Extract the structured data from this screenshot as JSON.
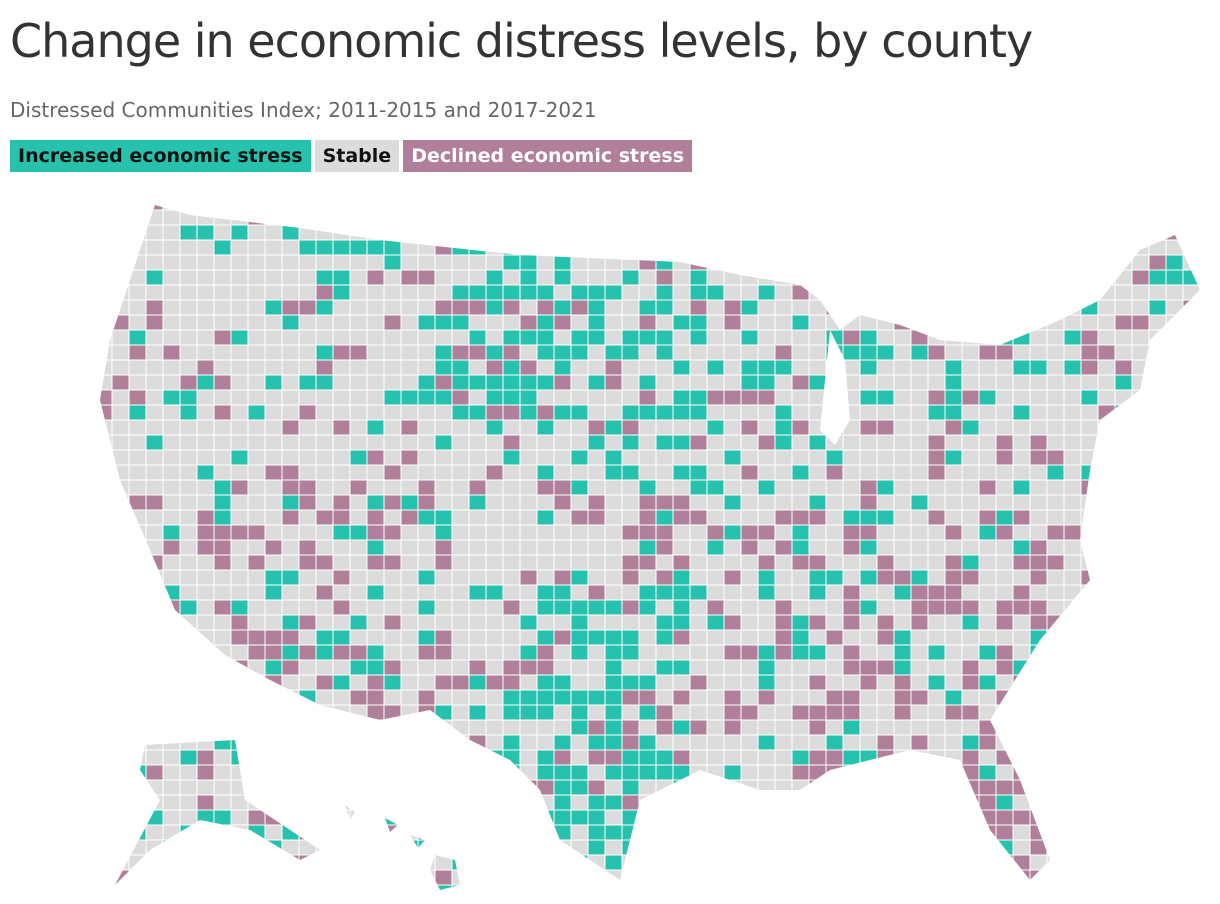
{
  "header": {
    "title": "Change in economic distress levels, by county",
    "subtitle": "Distressed Communities Index; 2011-2015 and 2017-2021"
  },
  "legend": [
    {
      "label": "Increased economic stress",
      "color": "#26c2ad",
      "text_color": "#111111"
    },
    {
      "label": "Stable",
      "color": "#dcdcdc",
      "text_color": "#111111"
    },
    {
      "label": "Declined economic stress",
      "color": "#b07f99",
      "text_color": "#ffffff"
    }
  ]
}
